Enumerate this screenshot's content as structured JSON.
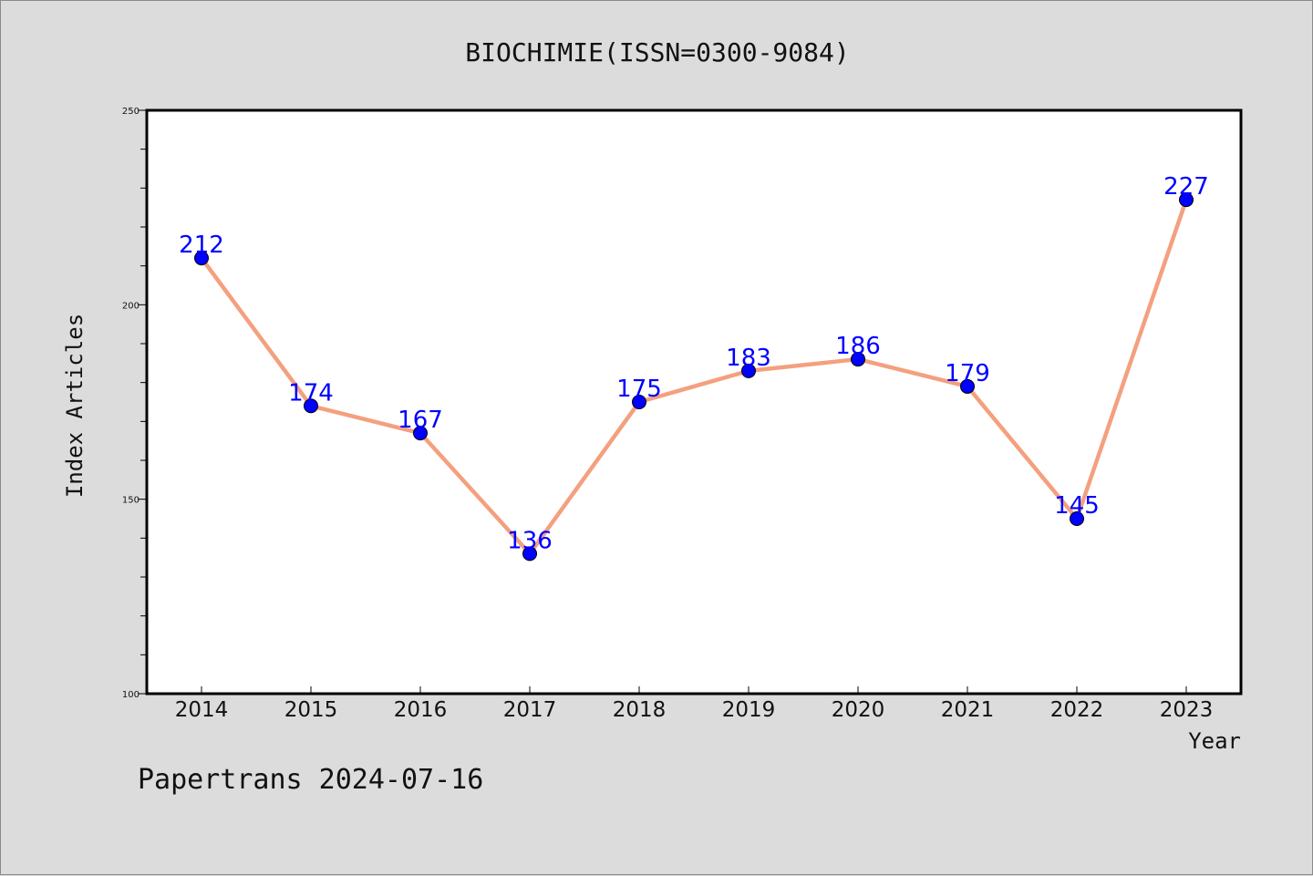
{
  "chart_data": {
    "type": "line",
    "title": "BIOCHIMIE(ISSN=0300-9084)",
    "xlabel": "Year",
    "ylabel": "Index Articles",
    "categories": [
      "2014",
      "2015",
      "2016",
      "2017",
      "2018",
      "2019",
      "2020",
      "2021",
      "2022",
      "2023"
    ],
    "series": [
      {
        "values": [
          212,
          174,
          167,
          136,
          175,
          183,
          186,
          179,
          145,
          227
        ]
      }
    ],
    "ylim": [
      100,
      250
    ],
    "yticks": [
      100,
      150,
      200,
      250
    ],
    "y_minor_step": 10,
    "grid": false,
    "data_labels": true,
    "line_color": "#f4a07f",
    "marker_color": "#0000ff",
    "label_color": "#0000ff"
  },
  "footer": "Papertrans 2024-07-16",
  "colors": {
    "background": "#dcdcdc",
    "plot_area": "#ffffff",
    "axis": "#000000"
  }
}
